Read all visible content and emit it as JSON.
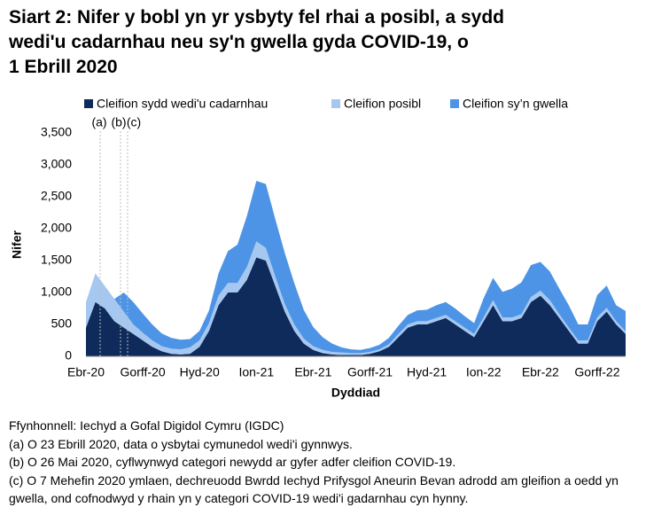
{
  "chart_data": {
    "type": "stacked-area",
    "title": [
      "Siart 2: Nifer y bobl yn yr ysbyty fel rhai a posibl, a sydd",
      "wedi'u cadarnhau neu sy'n gwella gyda COVID-19, o",
      "1 Ebrill 2020"
    ],
    "x_label": "Dyddiad",
    "y_label": "Nifer",
    "categories": [
      "Ebr-20",
      null,
      null,
      null,
      null,
      null,
      "Gorff-20",
      null,
      null,
      null,
      null,
      null,
      "Hyd-20",
      null,
      null,
      null,
      null,
      null,
      "Ion-21",
      null,
      null,
      null,
      null,
      null,
      "Ebr-21",
      null,
      null,
      null,
      null,
      null,
      "Gorff-21",
      null,
      null,
      null,
      null,
      null,
      "Hyd-21",
      null,
      null,
      null,
      null,
      null,
      "Ion-22",
      null,
      null,
      null,
      null,
      null,
      "Ebr-22",
      null,
      null,
      null,
      null,
      null,
      "Gorff-22",
      null,
      null,
      null
    ],
    "series": [
      {
        "name": "Cleifion sydd wedi'u cadarnhau",
        "color": "#0f2b5b",
        "values": [
          450,
          850,
          750,
          550,
          450,
          350,
          250,
          150,
          80,
          40,
          30,
          40,
          150,
          400,
          800,
          1000,
          1000,
          1200,
          1550,
          1500,
          1100,
          700,
          400,
          200,
          100,
          50,
          30,
          20,
          20,
          20,
          40,
          80,
          150,
          300,
          450,
          500,
          500,
          550,
          600,
          500,
          400,
          300,
          550,
          800,
          550,
          550,
          600,
          850,
          950,
          800,
          600,
          400,
          200,
          200,
          550,
          700,
          500,
          350
        ]
      },
      {
        "name": "Cleifion posibl",
        "color": "#a6c8f0",
        "values": [
          400,
          450,
          350,
          350,
          250,
          150,
          120,
          100,
          80,
          80,
          80,
          100,
          100,
          120,
          150,
          150,
          150,
          200,
          250,
          200,
          150,
          120,
          100,
          80,
          60,
          50,
          40,
          40,
          30,
          30,
          30,
          30,
          40,
          50,
          50,
          50,
          50,
          50,
          50,
          50,
          50,
          50,
          60,
          80,
          60,
          60,
          60,
          80,
          80,
          80,
          60,
          50,
          50,
          50,
          60,
          60,
          50,
          40
        ]
      },
      {
        "name": "Cleifion sy’n gwella",
        "color": "#4e94e6",
        "values": [
          0,
          0,
          0,
          0,
          300,
          350,
          300,
          250,
          200,
          170,
          150,
          130,
          150,
          200,
          350,
          500,
          600,
          800,
          950,
          1000,
          900,
          800,
          650,
          450,
          300,
          200,
          130,
          80,
          60,
          50,
          60,
          70,
          100,
          130,
          150,
          170,
          180,
          200,
          200,
          200,
          180,
          170,
          300,
          350,
          400,
          450,
          500,
          500,
          450,
          450,
          400,
          350,
          250,
          250,
          350,
          350,
          250,
          320
        ]
      }
    ],
    "ylim": [
      0,
      3500
    ],
    "yticks": [
      0,
      500,
      {
        "value": 1000,
        "label": "1,000"
      },
      {
        "value": 1500,
        "label": "1,500"
      },
      {
        "value": 2000,
        "label": "2,000"
      },
      {
        "value": 2500,
        "label": "2,500"
      },
      {
        "value": 3000,
        "label": "3,000"
      },
      {
        "value": 3500,
        "label": "3,500"
      }
    ],
    "annotations": [
      "(a)",
      "(b)",
      "(c)"
    ],
    "notes": [
      "Ffynhonnell: Iechyd a Gofal Digidol Cymru (IGDC)",
      "(a) O 23 Ebrill 2020, data o ysbytai cymunedol wedi'i gynnwys.",
      "(b) O 26 Mai 2020, cyflwynwyd categori newydd ar gyfer adfer cleifion COVID-19.",
      "(c) O 7 Mehefin 2020 ymlaen, dechreuodd Bwrdd Iechyd Prifysgol Aneurin Bevan adrodd am gleifion a oedd yn gwella, ond cofnodwyd y rhain yn y categori COVID-19 wedi'i gadarnhau cyn hynny."
    ]
  }
}
